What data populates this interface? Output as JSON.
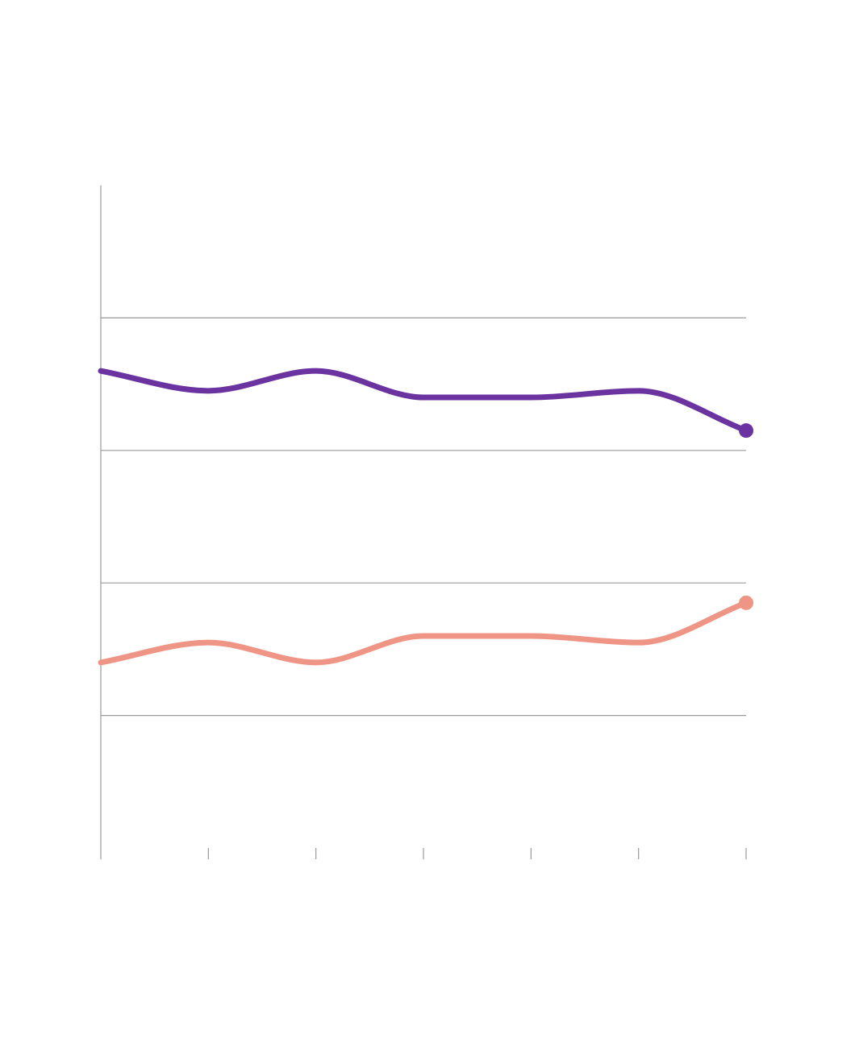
{
  "chart_data": {
    "type": "line",
    "x": [
      0,
      1,
      2,
      3,
      4,
      5,
      6
    ],
    "xlim": [
      0,
      6
    ],
    "ylim": [
      0,
      100
    ],
    "y_gridlines": [
      20,
      40,
      60,
      80
    ],
    "grid": true,
    "legend": "none",
    "title": "",
    "xlabel": "",
    "ylabel": "",
    "series": [
      {
        "values": [
          72,
          69,
          72,
          68,
          68,
          69,
          63
        ],
        "color": "#6b33a0",
        "end_marker": true
      },
      {
        "values": [
          28,
          31,
          28,
          32,
          32,
          31,
          37
        ],
        "color": "#ef9585",
        "end_marker": true
      }
    ]
  }
}
